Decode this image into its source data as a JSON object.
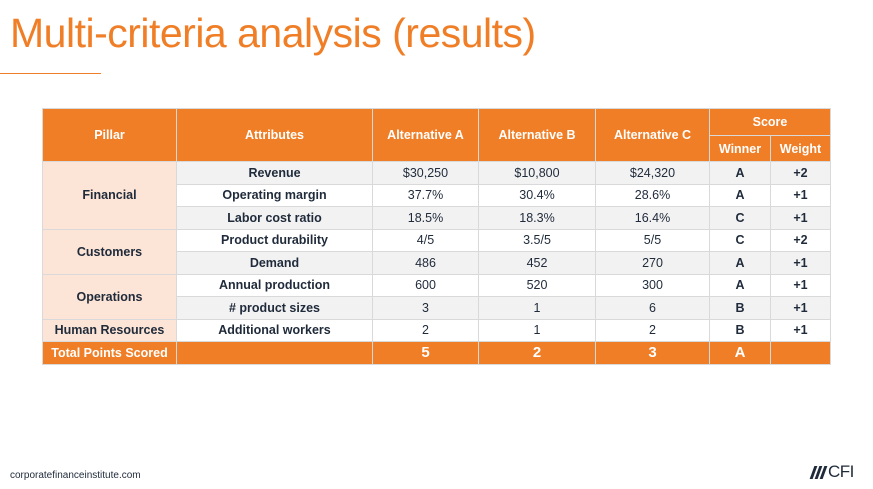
{
  "title": "Multi-criteria analysis (results)",
  "table": {
    "headers": {
      "pillar": "Pillar",
      "attributes": "Attributes",
      "alt_a": "Alternative A",
      "alt_b": "Alternative B",
      "alt_c": "Alternative C",
      "score": "Score",
      "winner": "Winner",
      "weight": "Weight"
    },
    "pillars": [
      "Financial",
      "Customers",
      "Operations",
      "Human Resources"
    ],
    "rows": [
      {
        "attribute": "Revenue",
        "a": "$30,250",
        "b": "$10,800",
        "c": "$24,320",
        "winner": "A",
        "weight": "+2"
      },
      {
        "attribute": "Operating margin",
        "a": "37.7%",
        "b": "30.4%",
        "c": "28.6%",
        "winner": "A",
        "weight": "+1"
      },
      {
        "attribute": "Labor cost ratio",
        "a": "18.5%",
        "b": "18.3%",
        "c": "16.4%",
        "winner": "C",
        "weight": "+1"
      },
      {
        "attribute": "Product durability",
        "a": "4/5",
        "b": "3.5/5",
        "c": "5/5",
        "winner": "C",
        "weight": "+2"
      },
      {
        "attribute": "Demand",
        "a": "486",
        "b": "452",
        "c": "270",
        "winner": "A",
        "weight": "+1"
      },
      {
        "attribute": "Annual production",
        "a": "600",
        "b": "520",
        "c": "300",
        "winner": "A",
        "weight": "+1"
      },
      {
        "attribute": "# product sizes",
        "a": "3",
        "b": "1",
        "c": "6",
        "winner": "B",
        "weight": "+1"
      },
      {
        "attribute": "Additional workers",
        "a": "2",
        "b": "1",
        "c": "2",
        "winner": "B",
        "weight": "+1"
      }
    ],
    "total": {
      "label": "Total Points Scored",
      "a": "5",
      "b": "2",
      "c": "3",
      "winner": "A"
    }
  },
  "footer": {
    "url": "corporatefinanceinstitute.com",
    "logo_text": "CFI"
  },
  "colors": {
    "accent": "#f07e26",
    "pillar_fill": "#fce4d6",
    "text_dark": "#1f2a3a"
  }
}
